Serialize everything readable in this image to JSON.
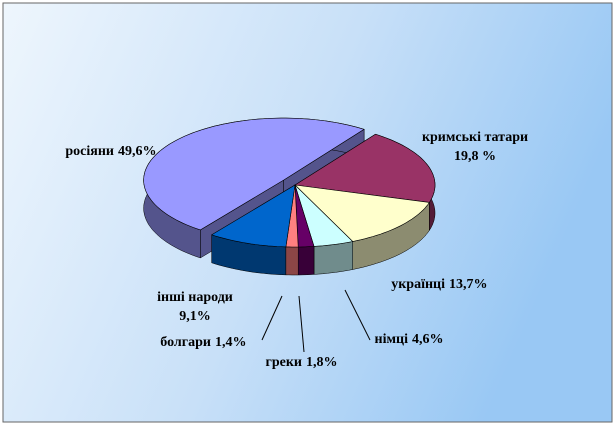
{
  "chart_data": {
    "type": "pie3d",
    "categories": [
      "росіяни",
      "кримські татари",
      "українці",
      "німці",
      "греки",
      "болгари",
      "інші народи"
    ],
    "values": [
      49.6,
      19.8,
      13.7,
      4.6,
      1.8,
      1.4,
      9.1
    ],
    "value_labels": [
      "49,6%",
      "19,8 %",
      "13,7%",
      "4,6%",
      "1,8%",
      "1,4%",
      "9,1%"
    ],
    "colors": [
      "#9999ff",
      "#993366",
      "#ffffcc",
      "#ccffff",
      "#660066",
      "#ff8080",
      "#0066cc"
    ]
  }
}
